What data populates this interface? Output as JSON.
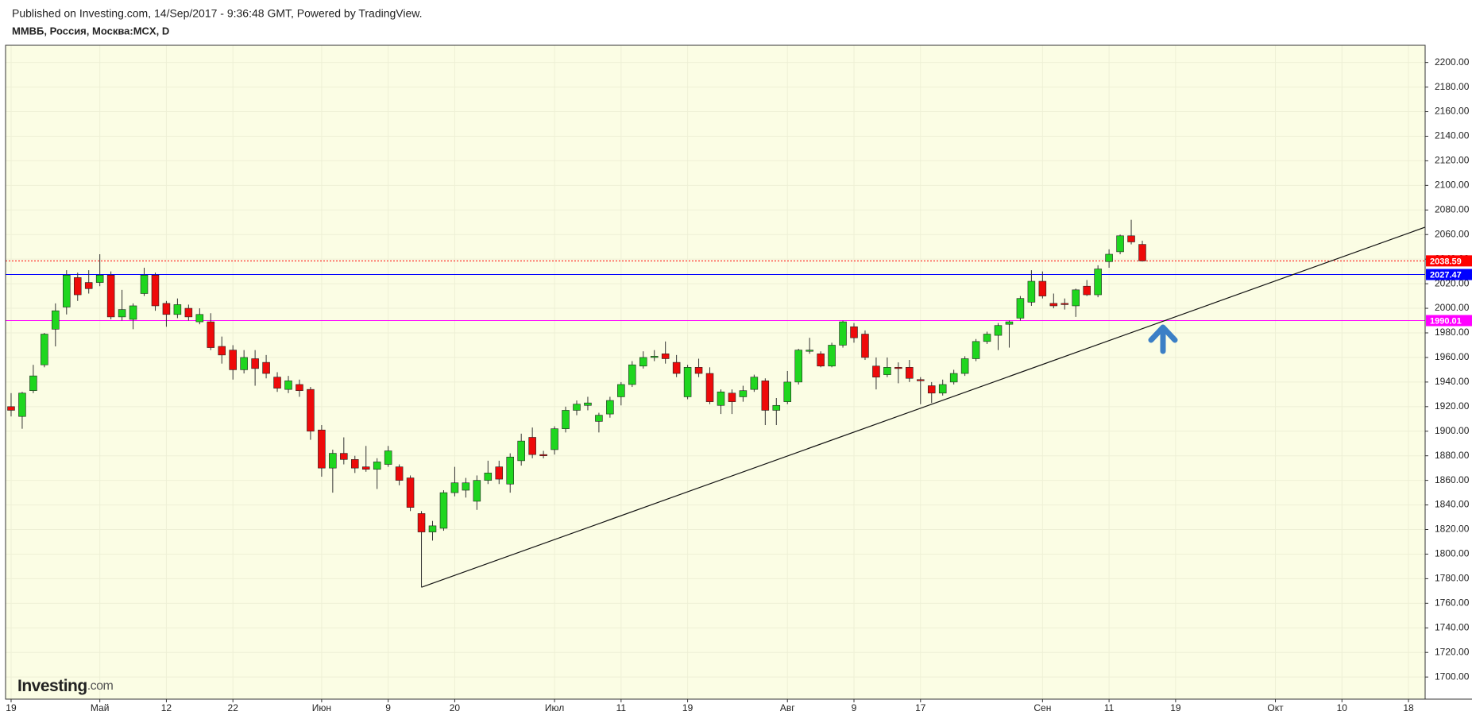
{
  "chart_data": {
    "type": "candlestick",
    "title": "Published on Investing.com, 14/Sep/2017 - 9:36:48 GMT, Powered by TradingView.",
    "subtitle": "ММВБ, Россия, Москва:MCX, D",
    "logo": {
      "name": "Investing",
      "suffix": ".com"
    },
    "up_color": "#1fd61f",
    "down_color": "#ee0a0a",
    "grid": true,
    "categories": [
      "19",
      null,
      null,
      null,
      null,
      null,
      null,
      null,
      "Май",
      null,
      null,
      null,
      null,
      null,
      "12",
      null,
      null,
      null,
      null,
      null,
      "22",
      null,
      null,
      null,
      null,
      null,
      null,
      null,
      "Июн",
      null,
      null,
      null,
      null,
      null,
      "9",
      null,
      null,
      null,
      null,
      null,
      "20",
      null,
      null,
      null,
      null,
      null,
      null,
      null,
      null,
      "Июл",
      null,
      null,
      null,
      null,
      null,
      "11",
      null,
      null,
      null,
      null,
      null,
      "19",
      null,
      null,
      null,
      null,
      null,
      null,
      null,
      null,
      "Авг",
      null,
      null,
      null,
      null,
      null,
      "9",
      null,
      null,
      null,
      null,
      null,
      "17",
      null,
      null,
      null,
      null,
      null,
      null,
      null,
      null,
      null,
      null,
      "Сен",
      null,
      null,
      null,
      null,
      null,
      "11",
      null,
      null,
      null,
      null,
      null,
      "19",
      null,
      null,
      null,
      null,
      null,
      null,
      null,
      null,
      "Окт",
      null,
      null,
      null,
      null,
      null,
      "10",
      null,
      null,
      null,
      null,
      null,
      "18",
      null
    ],
    "open": [
      1920,
      1912,
      1933,
      1954,
      1983,
      2001,
      2025,
      2021,
      2021,
      2027,
      1993,
      1991,
      2012,
      2027,
      2004,
      1995,
      2000,
      1989,
      1989,
      1969,
      1966,
      1950,
      1959,
      1956,
      1944,
      1934,
      1938,
      1934,
      1901,
      1870,
      1882,
      1877,
      1871,
      1869,
      1873,
      1871,
      1862,
      1833,
      1818,
      1821,
      1850,
      1852,
      1843,
      1860,
      1871,
      1857,
      1876,
      1895,
      1881,
      1885,
      1902,
      1917,
      1921,
      1908,
      1914,
      1928,
      1938,
      1953,
      1960,
      1963,
      1956,
      1928,
      1952,
      1947,
      1921,
      1931,
      1928,
      1934,
      1941,
      1917,
      1924,
      1940,
      1965,
      1963,
      1953,
      1970,
      1985,
      1979,
      1953,
      1946,
      1952,
      1952,
      1942,
      1937,
      1931,
      1940,
      1947,
      1959,
      1973,
      1978,
      1987,
      1992,
      2005,
      2022,
      2004,
      2004,
      2002,
      2018,
      2011,
      2038,
      2046,
      2059,
      2052,
      null,
      null,
      null,
      null,
      null,
      null,
      null,
      null,
      null,
      null,
      null,
      null,
      null,
      null,
      null,
      null,
      null,
      null,
      null,
      null,
      null,
      null,
      null,
      null,
      null
    ],
    "high": [
      1931,
      1932,
      1954,
      1980,
      2004,
      2031,
      2029,
      2031,
      2044,
      2030,
      2015,
      2004,
      2033,
      2029,
      2006,
      2008,
      2003,
      2000,
      1996,
      1977,
      1970,
      1966,
      1966,
      1962,
      1948,
      1945,
      1942,
      1936,
      1905,
      1885,
      1895,
      1880,
      1888,
      1878,
      1888,
      1873,
      1864,
      1835,
      1827,
      1852,
      1871,
      1862,
      1864,
      1876,
      1876,
      1882,
      1898,
      1903,
      1884,
      1904,
      1920,
      1925,
      1928,
      1915,
      1928,
      1940,
      1957,
      1965,
      1966,
      1973,
      1962,
      1954,
      1959,
      1952,
      1934,
      1934,
      1937,
      1946,
      1943,
      1927,
      1949,
      1967,
      1976,
      1965,
      1972,
      1990,
      1988,
      1982,
      1960,
      1960,
      1956,
      1958,
      1944,
      1940,
      1942,
      1950,
      1961,
      1975,
      1981,
      1988,
      1990,
      2010,
      2031,
      2030,
      2012,
      2008,
      2016,
      2023,
      2035,
      2048,
      2060,
      2072,
      2055,
      null,
      null,
      null,
      null,
      null,
      null,
      null,
      null,
      null,
      null,
      null,
      null,
      null,
      null,
      null,
      null,
      null,
      null,
      null,
      null,
      null,
      null,
      null,
      null,
      null
    ],
    "low": [
      1912,
      1902,
      1931,
      1952,
      1969,
      1995,
      2006,
      2012,
      2018,
      1991,
      1990,
      1983,
      2010,
      1998,
      1985,
      1992,
      1990,
      1987,
      1966,
      1955,
      1942,
      1947,
      1937,
      1943,
      1932,
      1931,
      1928,
      1893,
      1863,
      1850,
      1873,
      1866,
      1867,
      1853,
      1871,
      1856,
      1835,
      1773,
      1811,
      1819,
      1847,
      1846,
      1836,
      1857,
      1857,
      1850,
      1872,
      1878,
      1878,
      1881,
      1899,
      1913,
      1917,
      1899,
      1911,
      1921,
      1936,
      1951,
      1957,
      1955,
      1944,
      1926,
      1944,
      1922,
      1914,
      1914,
      1924,
      1932,
      1905,
      1905,
      1922,
      1938,
      1963,
      1952,
      1952,
      1968,
      1972,
      1958,
      1934,
      1944,
      1939,
      1940,
      1922,
      1923,
      1929,
      1938,
      1945,
      1957,
      1971,
      1966,
      1968,
      1990,
      2002,
      2008,
      2000,
      1999,
      1993,
      2010,
      2009,
      2033,
      2044,
      2052,
      2038,
      null,
      null,
      null,
      null,
      null,
      null,
      null,
      null,
      null,
      null,
      null,
      null,
      null,
      null,
      null,
      null,
      null,
      null,
      null,
      null,
      null,
      null,
      null,
      null,
      null
    ],
    "close": [
      1917,
      1931,
      1945,
      1979,
      1998,
      2027,
      2011,
      2016,
      2027,
      1993,
      1999,
      2002,
      2027,
      2002,
      1995,
      2003,
      1993,
      1995,
      1968,
      1962,
      1950,
      1960,
      1951,
      1947,
      1935,
      1941,
      1933,
      1900,
      1870,
      1882,
      1877,
      1870,
      1869,
      1875,
      1884,
      1860,
      1838,
      1818,
      1823,
      1850,
      1858,
      1858,
      1860,
      1866,
      1861,
      1879,
      1892,
      1881,
      1880,
      1902,
      1917,
      1922,
      1923,
      1913,
      1925,
      1938,
      1954,
      1960,
      1961,
      1959,
      1947,
      1952,
      1947,
      1924,
      1932,
      1924,
      1933,
      1944,
      1917,
      1921,
      1940,
      1966,
      1966,
      1953,
      1970,
      1989,
      1976,
      1960,
      1944,
      1952,
      1951,
      1943,
      1941,
      1931,
      1938,
      1947,
      1959,
      1973,
      1979,
      1986,
      1989,
      2008,
      2022,
      2010,
      2002,
      2003,
      2015,
      2011,
      2032,
      2044,
      2059,
      2054,
      2038.59,
      null,
      null,
      null,
      null,
      null,
      null,
      null,
      null,
      null,
      null,
      null,
      null,
      null,
      null,
      null,
      null,
      null,
      null,
      null,
      null,
      null,
      null,
      null,
      null,
      null
    ],
    "ylim": [
      1682,
      2214
    ],
    "yticks": [
      {
        "value": 1700,
        "label": "1700.00"
      },
      {
        "value": 1720,
        "label": "1720.00"
      },
      {
        "value": 1740,
        "label": "1740.00"
      },
      {
        "value": 1760,
        "label": "1760.00"
      },
      {
        "value": 1780,
        "label": "1780.00"
      },
      {
        "value": 1800,
        "label": "1800.00"
      },
      {
        "value": 1820,
        "label": "1820.00"
      },
      {
        "value": 1840,
        "label": "1840.00"
      },
      {
        "value": 1860,
        "label": "1860.00"
      },
      {
        "value": 1880,
        "label": "1880.00"
      },
      {
        "value": 1900,
        "label": "1900.00"
      },
      {
        "value": 1920,
        "label": "1920.00"
      },
      {
        "value": 1940,
        "label": "1940.00"
      },
      {
        "value": 1960,
        "label": "1960.00"
      },
      {
        "value": 1980,
        "label": "1980.00"
      },
      {
        "value": 2000,
        "label": "2000.00"
      },
      {
        "value": 2020,
        "label": "2020.00"
      },
      {
        "value": 2040,
        "label": "2040.00"
      },
      {
        "value": 2060,
        "label": "2060.00"
      },
      {
        "value": 2080,
        "label": "2080.00"
      },
      {
        "value": 2100,
        "label": "2100.00"
      },
      {
        "value": 2120,
        "label": "2120.00"
      },
      {
        "value": 2140,
        "label": "2140.00"
      },
      {
        "value": 2160,
        "label": "2160.00"
      },
      {
        "value": 2180,
        "label": "2180.00"
      },
      {
        "value": 2200,
        "label": "2200.00"
      }
    ],
    "price_lines": [
      {
        "value": 2038.59,
        "color": "#ff0000",
        "style": "dotted"
      },
      {
        "value": 2027.47,
        "color": "#0000ff",
        "style": "solid"
      },
      {
        "value": 1990.01,
        "color": "#ff00ff",
        "style": "solid"
      }
    ],
    "trend_line": [
      1773,
      2066
    ]
  }
}
